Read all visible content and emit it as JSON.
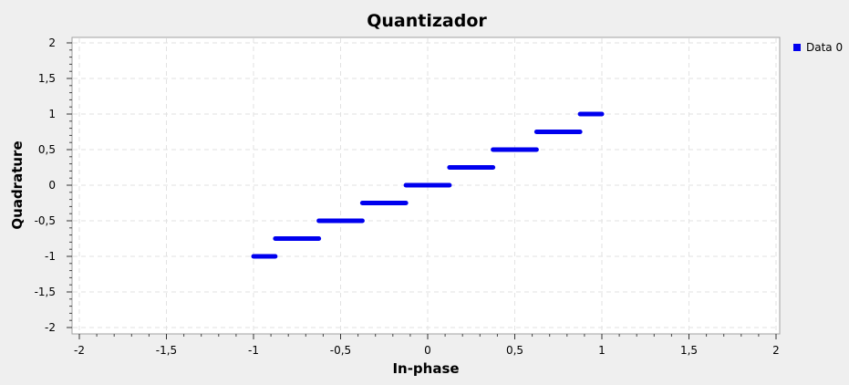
{
  "chart_data": {
    "type": "scatter",
    "title": "Quantizador",
    "xlabel": "In-phase",
    "ylabel": "Quadrature",
    "xlim": [
      -2,
      2
    ],
    "ylim": [
      -2,
      2
    ],
    "grid": true,
    "legend_position": "top-right",
    "xticks": [
      "-2",
      "-1,5",
      "-1",
      "-0,5",
      "0",
      "0,5",
      "1",
      "1,5",
      "2"
    ],
    "yticks": [
      "-2",
      "-1,5",
      "-1",
      "-0,5",
      "0",
      "0,5",
      "1",
      "1,5",
      "2"
    ],
    "series": [
      {
        "name": "Data 0",
        "color": "#0000ee",
        "segments": [
          {
            "x_start": -1.0,
            "x_end": -0.875,
            "y": -1.0
          },
          {
            "x_start": -0.875,
            "x_end": -0.625,
            "y": -0.75
          },
          {
            "x_start": -0.625,
            "x_end": -0.375,
            "y": -0.5
          },
          {
            "x_start": -0.375,
            "x_end": -0.125,
            "y": -0.25
          },
          {
            "x_start": -0.125,
            "x_end": 0.125,
            "y": 0.0
          },
          {
            "x_start": 0.125,
            "x_end": 0.375,
            "y": 0.25
          },
          {
            "x_start": 0.375,
            "x_end": 0.625,
            "y": 0.5
          },
          {
            "x_start": 0.625,
            "x_end": 0.875,
            "y": 0.75
          },
          {
            "x_start": 0.875,
            "x_end": 1.0,
            "y": 1.0
          }
        ]
      }
    ]
  }
}
